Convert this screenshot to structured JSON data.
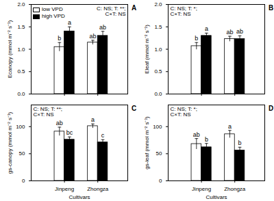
{
  "chart_data": [
    {
      "type": "bar",
      "title": "A",
      "ylabel": "Ecanopy (mmol m⁻² s⁻¹)",
      "categories": [
        "Jinpeng",
        "Zhongza"
      ],
      "series": [
        {
          "name": "low VPD",
          "color": "#ffffff",
          "values": [
            1.05,
            1.15
          ],
          "errors": [
            0.1,
            0.05
          ],
          "letters": [
            "b",
            "ab"
          ]
        },
        {
          "name": "high VPD",
          "color": "#000000",
          "values": [
            1.4,
            1.3
          ],
          "errors": [
            0.1,
            0.1
          ],
          "letters": [
            "a",
            "ab"
          ]
        }
      ],
      "ylim": [
        0,
        2
      ],
      "yticks": [
        {
          "value": 0,
          "label": "0.0"
        },
        {
          "value": 0.5,
          "label": "0.5"
        },
        {
          "value": 1,
          "label": "1.0"
        },
        {
          "value": 1.5,
          "label": "1.5"
        },
        {
          "value": 2,
          "label": "2.0"
        }
      ],
      "annotation": "C: NS; T: **;\nC×T: NS",
      "legend": "upper left",
      "tick_labels": "y"
    },
    {
      "type": "bar",
      "title": "B",
      "ylabel": "Eleaf (mmol m⁻² s⁻¹)",
      "categories": [
        "Jinpeng",
        "Zhongza"
      ],
      "series": [
        {
          "name": "low VPD",
          "color": "#ffffff",
          "values": [
            1.07,
            1.23
          ],
          "errors": [
            0.08,
            0.06
          ],
          "letters": [
            "b",
            "ab"
          ]
        },
        {
          "name": "high VPD",
          "color": "#000000",
          "values": [
            1.3,
            1.23
          ],
          "errors": [
            0.06,
            0.07
          ],
          "letters": [
            "a",
            "ab"
          ]
        }
      ],
      "ylim": [
        0,
        2
      ],
      "yticks": [
        {
          "value": 0,
          "label": "0.0"
        },
        {
          "value": 0.5,
          "label": "0.5"
        },
        {
          "value": 1,
          "label": "1.0"
        },
        {
          "value": 1.5,
          "label": "1.5"
        },
        {
          "value": 2,
          "label": "2.0"
        }
      ],
      "annotation": "C: NS; T: *;\nC×T: NS",
      "tick_labels": "y"
    },
    {
      "type": "bar",
      "title": "C",
      "ylabel": "gs-canopy (mmol m⁻² s⁻¹)",
      "xlabel": "Cultivars",
      "categories": [
        "Jinpeng",
        "Zhongza"
      ],
      "series": [
        {
          "name": "low VPD",
          "color": "#ffffff",
          "values": [
            91,
            101
          ],
          "errors": [
            8,
            4
          ],
          "letters": [
            "ab",
            "a"
          ]
        },
        {
          "name": "high VPD",
          "color": "#000000",
          "values": [
            76,
            71
          ],
          "errors": [
            5,
            5
          ],
          "letters": [
            "bc",
            "c"
          ]
        }
      ],
      "ylim": [
        0,
        140
      ],
      "yticks": [
        0,
        50,
        100
      ],
      "annotation": "C: NS; T: **;\nC×T: NS"
    },
    {
      "type": "bar",
      "title": "D",
      "ylabel": "gs-leaf (mmol m⁻² s⁻¹)",
      "xlabel": "Cultivars",
      "categories": [
        "Jinpeng",
        "Zhongza"
      ],
      "series": [
        {
          "name": "low VPD",
          "color": "#ffffff",
          "values": [
            68,
            86
          ],
          "errors": [
            10,
            7
          ],
          "letters": [
            "ab",
            "a"
          ]
        },
        {
          "name": "high VPD",
          "color": "#000000",
          "values": [
            62,
            56
          ],
          "errors": [
            7,
            6
          ],
          "letters": [
            "b",
            "b"
          ]
        }
      ],
      "ylim": [
        0,
        140
      ],
      "yticks": [
        0,
        50,
        100
      ],
      "annotation": "C: NS; T: *;\nC×T: NS"
    }
  ]
}
